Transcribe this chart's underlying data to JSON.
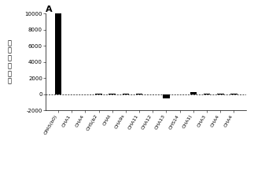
{
  "title": "A",
  "ylabel": "相\n对\n激\n动\n比\n率",
  "categories": [
    "CPA5(b0)",
    "CHA1",
    "CHA4",
    "CHS(b2",
    "CHAt",
    "CHA9s",
    "CHA11",
    "CHA12",
    "CHA13",
    "CHS14",
    "CHA1)",
    "CHA3",
    "CHA4",
    "CHA4"
  ],
  "values": [
    10000,
    20,
    5,
    80,
    85,
    85,
    80,
    20,
    -500,
    5,
    300,
    80,
    80,
    80
  ],
  "bar_color": "#000000",
  "ylim": [
    -2000,
    10000
  ],
  "yticks": [
    -2000,
    0,
    2000,
    4000,
    6000,
    8000,
    10000
  ],
  "ytick_labels": [
    "-2000",
    "0",
    "2000",
    "4000",
    "6000",
    "8000",
    "10000"
  ],
  "background_color": "#ffffff",
  "title_fontsize": 8,
  "ylabel_fontsize": 6,
  "tick_fontsize": 5,
  "xtick_fontsize": 4.5,
  "bar_width": 0.5,
  "figsize": [
    3.23,
    2.16
  ],
  "dpi": 100
}
